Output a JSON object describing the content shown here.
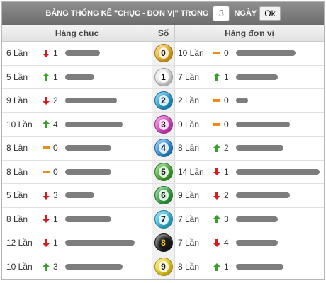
{
  "header": {
    "title": "BẢNG THỐNG KÊ \"CHỤC - ĐƠN VỊ\" TRONG",
    "days_value": "3",
    "days_label": "NGÀY",
    "ok_label": "Ok"
  },
  "columns": {
    "left": "Hàng chục",
    "mid": "Số",
    "right": "Hàng đơn vị"
  },
  "colors": {
    "up": "#3aa02a",
    "down": "#d81c1c",
    "flat": "#f08a1c",
    "bar": "#7d7d7d"
  },
  "rows": [
    {
      "digit": "0",
      "ball_color": "#f2b21a",
      "dark": false,
      "tens": {
        "count": "6 Lần",
        "trend": "down",
        "delta": "1",
        "bar": 0.43
      },
      "units": {
        "count": "10 Lần",
        "trend": "flat",
        "delta": "0",
        "bar": 0.71
      }
    },
    {
      "digit": "1",
      "ball_color": "#e8e8e8",
      "dark": false,
      "tens": {
        "count": "5 Lần",
        "trend": "up",
        "delta": "1",
        "bar": 0.36
      },
      "units": {
        "count": "7 Lần",
        "trend": "up",
        "delta": "1",
        "bar": 0.5
      }
    },
    {
      "digit": "2",
      "ball_color": "#1e9fd6",
      "dark": false,
      "tens": {
        "count": "9 Lần",
        "trend": "down",
        "delta": "2",
        "bar": 0.64
      },
      "units": {
        "count": "2 Lần",
        "trend": "flat",
        "delta": "0",
        "bar": 0.14
      }
    },
    {
      "digit": "3",
      "ball_color": "#e040c8",
      "dark": false,
      "tens": {
        "count": "10 Lần",
        "trend": "up",
        "delta": "4",
        "bar": 0.71
      },
      "units": {
        "count": "9 Lần",
        "trend": "flat",
        "delta": "0",
        "bar": 0.64
      }
    },
    {
      "digit": "4",
      "ball_color": "#2b8fe0",
      "dark": false,
      "tens": {
        "count": "8 Lần",
        "trend": "flat",
        "delta": "0",
        "bar": 0.57
      },
      "units": {
        "count": "8 Lần",
        "trend": "up",
        "delta": "2",
        "bar": 0.57
      }
    },
    {
      "digit": "5",
      "ball_color": "#3fae2a",
      "dark": false,
      "tens": {
        "count": "8 Lần",
        "trend": "flat",
        "delta": "0",
        "bar": 0.57
      },
      "units": {
        "count": "14 Lần",
        "trend": "down",
        "delta": "1",
        "bar": 1.0
      }
    },
    {
      "digit": "6",
      "ball_color": "#2fa640",
      "dark": false,
      "tens": {
        "count": "5 Lần",
        "trend": "down",
        "delta": "3",
        "bar": 0.36
      },
      "units": {
        "count": "9 Lần",
        "trend": "down",
        "delta": "2",
        "bar": 0.64
      }
    },
    {
      "digit": "7",
      "ball_color": "#2fb8e0",
      "dark": false,
      "tens": {
        "count": "8 Lần",
        "trend": "down",
        "delta": "1",
        "bar": 0.57
      },
      "units": {
        "count": "7 Lần",
        "trend": "up",
        "delta": "3",
        "bar": 0.5
      }
    },
    {
      "digit": "8",
      "ball_color": "#1a1a1a",
      "dark": true,
      "tens": {
        "count": "12 Lần",
        "trend": "down",
        "delta": "1",
        "bar": 0.86
      },
      "units": {
        "count": "7 Lần",
        "trend": "down",
        "delta": "4",
        "bar": 0.5
      }
    },
    {
      "digit": "9",
      "ball_color": "#f2d21a",
      "dark": false,
      "tens": {
        "count": "10 Lần",
        "trend": "up",
        "delta": "3",
        "bar": 0.71
      },
      "units": {
        "count": "8 Lần",
        "trend": "up",
        "delta": "1",
        "bar": 0.57
      }
    }
  ]
}
